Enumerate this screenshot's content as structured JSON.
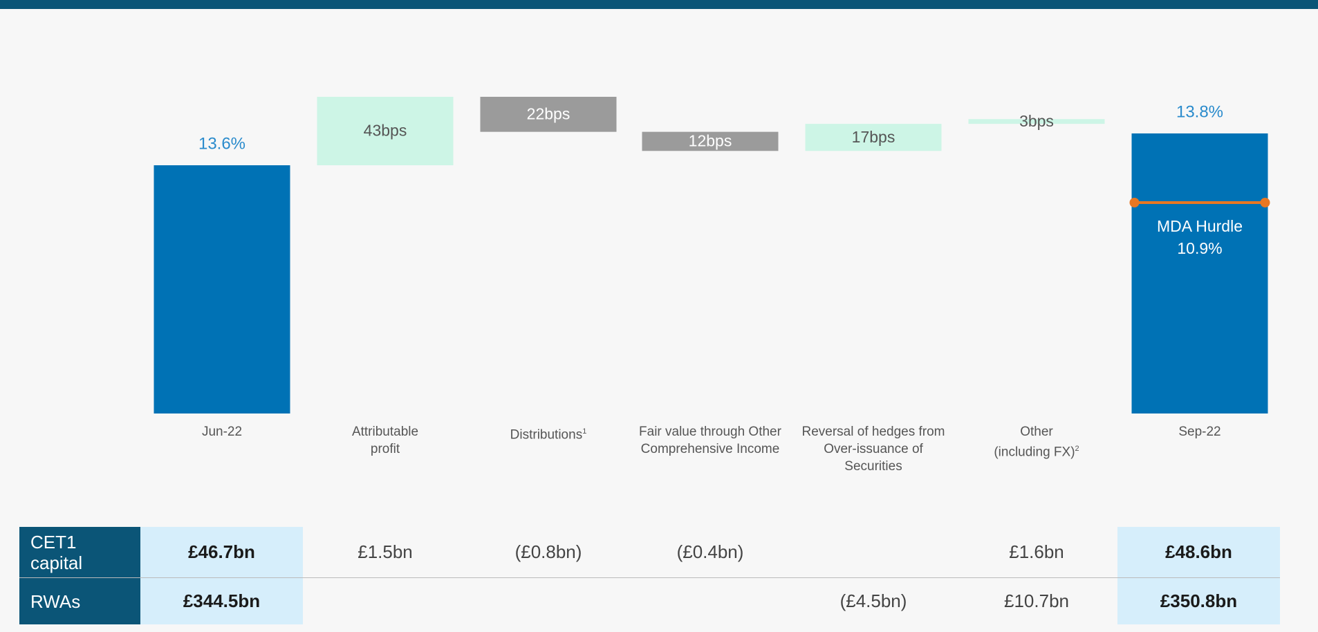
{
  "chart_data": {
    "type": "waterfall",
    "categories": [
      "Jun-22",
      "Attributable\nprofit",
      "Distributions",
      "Fair value through Other\nComprehensive Income",
      "Reversal of hedges from\nOver-issuance of\nSecurities",
      "Other\n(including FX)",
      "Sep-22"
    ],
    "category_notes": [
      null,
      null,
      "1",
      null,
      null,
      "2",
      null
    ],
    "measures": [
      "absolute",
      "relative",
      "relative",
      "relative",
      "relative",
      "relative",
      "total"
    ],
    "values": [
      13.6,
      0.43,
      -0.22,
      -0.12,
      0.17,
      0.03,
      13.8
    ],
    "value_labels": [
      "13.6%",
      "43bps",
      "22bps",
      "12bps",
      "17bps",
      "3bps",
      "13.8%"
    ],
    "colors": {
      "total": "#0072b5",
      "increase": "#cdf5e6",
      "decrease": "#9b9b9b",
      "total_label": "#2a8bcc"
    },
    "annotation": {
      "text": "MDA Hurdle",
      "value": 10.9,
      "value_label": "10.9%",
      "color": "#e87722"
    }
  },
  "table": {
    "headers": [
      "CET1\ncapital",
      "RWAs"
    ],
    "rows": [
      [
        "£46.7bn",
        "£1.5bn",
        "(£0.8bn)",
        "(£0.4bn)",
        null,
        "£1.6bn",
        "£48.6bn"
      ],
      [
        "£344.5bn",
        null,
        null,
        null,
        "(£4.5bn)",
        "£10.7bn",
        "£350.8bn"
      ]
    ]
  }
}
